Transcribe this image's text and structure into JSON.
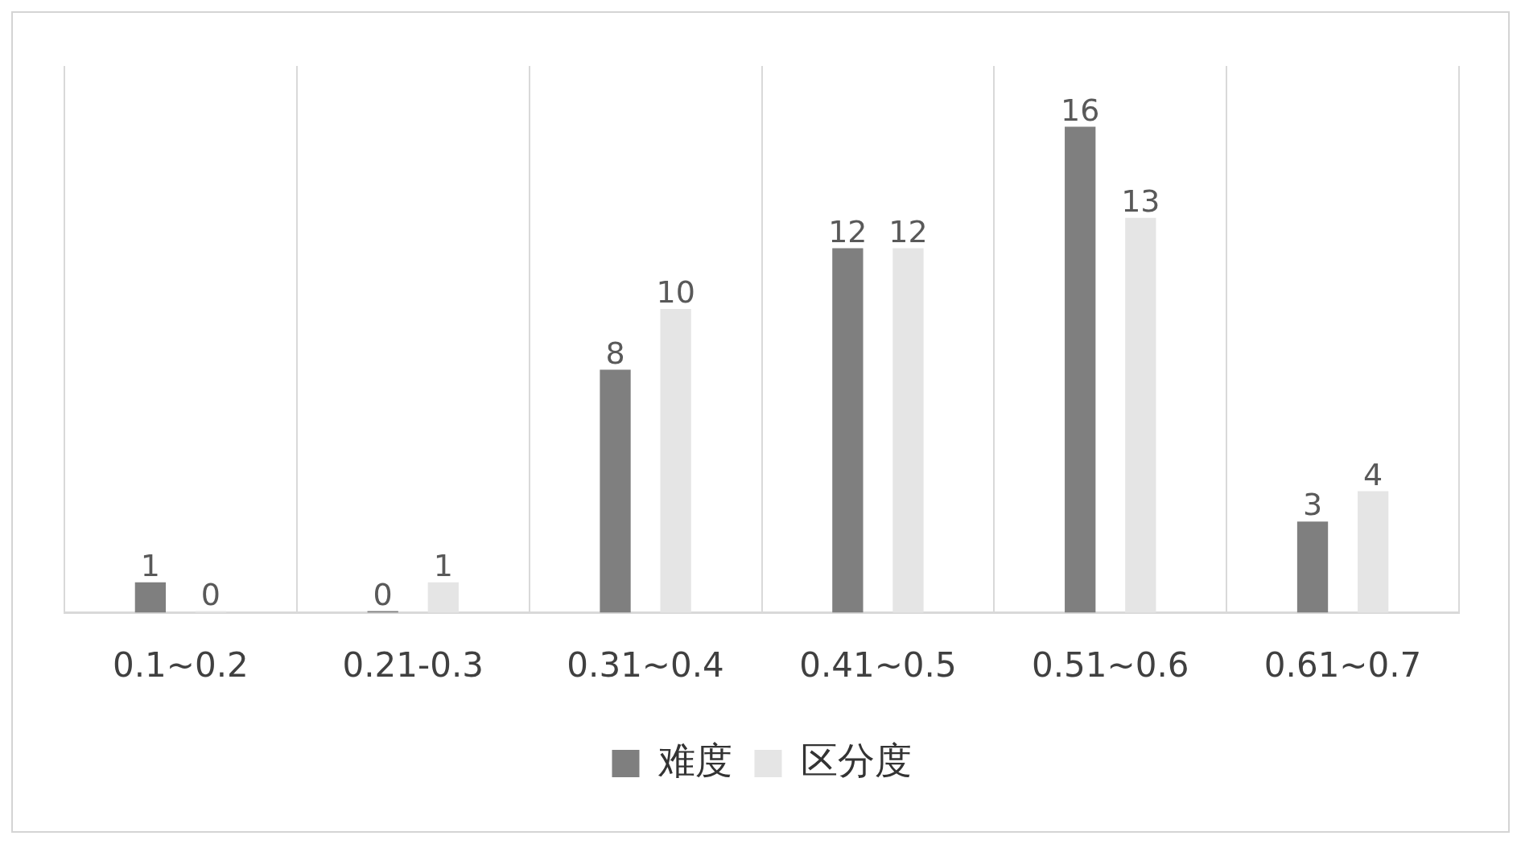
{
  "chart_data": {
    "type": "bar",
    "categories": [
      "0.1~0.2",
      "0.21-0.3",
      "0.31~0.4",
      "0.41~0.5",
      "0.51~0.6",
      "0.61~0.7"
    ],
    "series": [
      {
        "name": "难度",
        "color": "#7f7f7f",
        "values": [
          1,
          0,
          8,
          12,
          16,
          3
        ]
      },
      {
        "name": "区分度",
        "color": "#e5e5e5",
        "values": [
          0,
          1,
          10,
          12,
          13,
          4
        ]
      }
    ],
    "ylim": [
      0,
      18
    ],
    "data_labels": true,
    "grid": "x",
    "legend": "bottom",
    "tick_labels": "x"
  }
}
